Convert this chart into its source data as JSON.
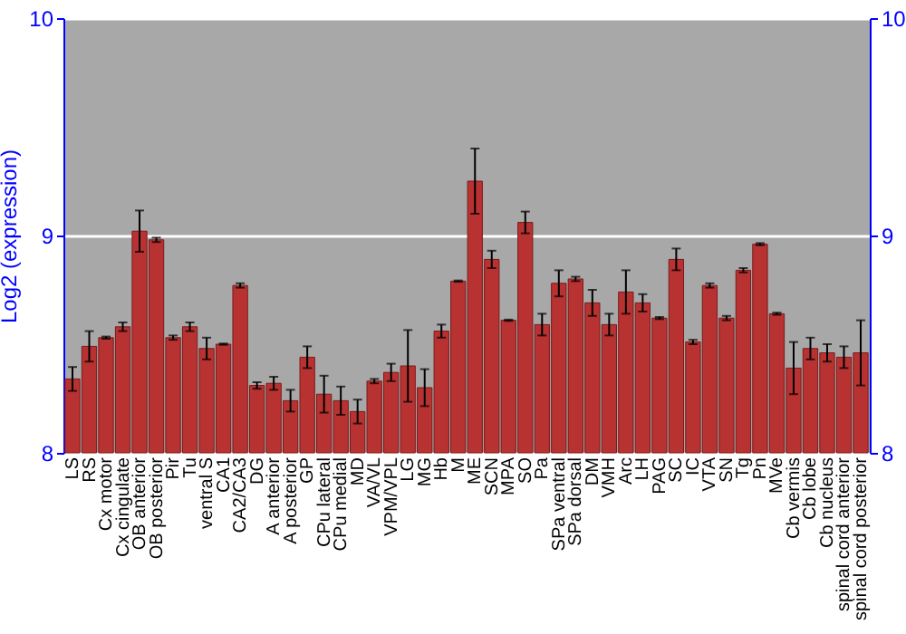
{
  "chart_data": {
    "type": "bar",
    "ylabel": "Log2 (expression)",
    "categories": [
      "LS",
      "RS",
      "Cx motor",
      "Cx cingulate",
      "OB anterior",
      "OB posterior",
      "Pir",
      "Tu",
      "ventral S",
      "CA1",
      "CA2/CA3",
      "DG",
      "A anterior",
      "A posterior",
      "GP",
      "CPu lateral",
      "CPu medial",
      "MD",
      "VA/VL",
      "VPM/VPL",
      "LG",
      "MG",
      "Hb",
      "M",
      "ME",
      "SCN",
      "MPA",
      "SO",
      "Pa",
      "SPa ventral",
      "SPa dorsal",
      "DM",
      "VMH",
      "Arc",
      "LH",
      "PAG",
      "SC",
      "IC",
      "VTA",
      "SN",
      "Tg",
      "Pn",
      "MVe",
      "Cb vermis",
      "Cb lobe",
      "Cb nucleus",
      "spinal cord anterior",
      "spinal cord posterior"
    ],
    "values": [
      8.34,
      8.49,
      8.53,
      8.58,
      9.02,
      8.98,
      8.53,
      8.58,
      8.48,
      8.5,
      8.77,
      8.31,
      8.32,
      8.24,
      8.44,
      8.27,
      8.24,
      8.19,
      8.33,
      8.37,
      8.4,
      8.3,
      8.56,
      8.79,
      9.25,
      8.89,
      8.61,
      9.06,
      8.59,
      8.78,
      8.8,
      8.69,
      8.59,
      8.74,
      8.69,
      8.62,
      8.89,
      8.51,
      8.77,
      8.62,
      8.84,
      8.96,
      8.64,
      8.39,
      8.48,
      8.46,
      8.44,
      8.46
    ],
    "errors": [
      0.055,
      0.07,
      0.005,
      0.02,
      0.095,
      0.01,
      0.01,
      0.02,
      0.05,
      0.003,
      0.01,
      0.015,
      0.03,
      0.05,
      0.05,
      0.085,
      0.065,
      0.055,
      0.01,
      0.04,
      0.165,
      0.085,
      0.03,
      0.003,
      0.15,
      0.04,
      0.003,
      0.05,
      0.05,
      0.06,
      0.01,
      0.06,
      0.05,
      0.1,
      0.04,
      0.005,
      0.05,
      0.01,
      0.01,
      0.01,
      0.01,
      0.005,
      0.005,
      0.12,
      0.05,
      0.04,
      0.05,
      0.15
    ],
    "color": "#b83232",
    "ylim": [
      8,
      10
    ],
    "yticks": [
      8,
      9,
      10
    ],
    "y2lim": [
      8,
      10
    ],
    "y2ticks": [
      8,
      9,
      10
    ],
    "grid": "y"
  }
}
